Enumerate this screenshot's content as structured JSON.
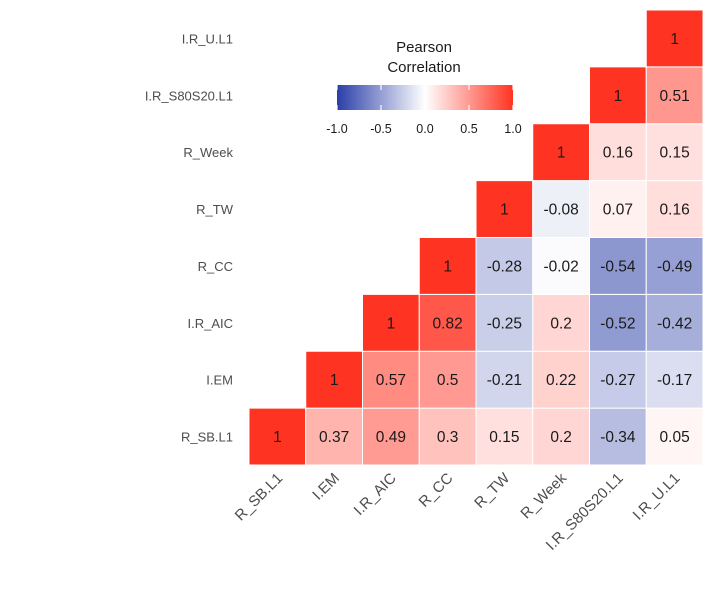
{
  "chart_data": {
    "type": "heatmap",
    "title": "",
    "variables": [
      "R_SB.L1",
      "I.EM",
      "I.R_AIC",
      "R_CC",
      "R_TW",
      "R_Week",
      "I.R_S80S20.L1",
      "I.R_U.L1"
    ],
    "x_tick_labels": [
      "R_SB.L1",
      "I.EM",
      "I.R_AIC",
      "R_CC",
      "R_TW",
      "R_Week",
      "I.R_S80S20.L1",
      "I.R_U.L1"
    ],
    "y_tick_labels": [
      "R_SB.L1",
      "I.EM",
      "I.R_AIC",
      "R_CC",
      "R_TW",
      "R_Week",
      "I.R_S80S20.L1",
      "I.R_U.L1"
    ],
    "triangle": "upper",
    "cells": [
      {
        "row": "R_SB.L1",
        "col": "R_SB.L1",
        "value": 1,
        "label": "1"
      },
      {
        "row": "R_SB.L1",
        "col": "I.EM",
        "value": 0.37,
        "label": "0.37"
      },
      {
        "row": "R_SB.L1",
        "col": "I.R_AIC",
        "value": 0.49,
        "label": "0.49"
      },
      {
        "row": "R_SB.L1",
        "col": "R_CC",
        "value": 0.3,
        "label": "0.3"
      },
      {
        "row": "R_SB.L1",
        "col": "R_TW",
        "value": 0.15,
        "label": "0.15"
      },
      {
        "row": "R_SB.L1",
        "col": "R_Week",
        "value": 0.2,
        "label": "0.2"
      },
      {
        "row": "R_SB.L1",
        "col": "I.R_S80S20.L1",
        "value": -0.34,
        "label": "-0.34"
      },
      {
        "row": "R_SB.L1",
        "col": "I.R_U.L1",
        "value": 0.05,
        "label": "0.05"
      },
      {
        "row": "I.EM",
        "col": "I.EM",
        "value": 1,
        "label": "1"
      },
      {
        "row": "I.EM",
        "col": "I.R_AIC",
        "value": 0.57,
        "label": "0.57"
      },
      {
        "row": "I.EM",
        "col": "R_CC",
        "value": 0.5,
        "label": "0.5"
      },
      {
        "row": "I.EM",
        "col": "R_TW",
        "value": -0.21,
        "label": "-0.21"
      },
      {
        "row": "I.EM",
        "col": "R_Week",
        "value": 0.22,
        "label": "0.22"
      },
      {
        "row": "I.EM",
        "col": "I.R_S80S20.L1",
        "value": -0.27,
        "label": "-0.27"
      },
      {
        "row": "I.EM",
        "col": "I.R_U.L1",
        "value": -0.17,
        "label": "-0.17"
      },
      {
        "row": "I.R_AIC",
        "col": "I.R_AIC",
        "value": 1,
        "label": "1"
      },
      {
        "row": "I.R_AIC",
        "col": "R_CC",
        "value": 0.82,
        "label": "0.82"
      },
      {
        "row": "I.R_AIC",
        "col": "R_TW",
        "value": -0.25,
        "label": "-0.25"
      },
      {
        "row": "I.R_AIC",
        "col": "R_Week",
        "value": 0.2,
        "label": "0.2"
      },
      {
        "row": "I.R_AIC",
        "col": "I.R_S80S20.L1",
        "value": -0.52,
        "label": "-0.52"
      },
      {
        "row": "I.R_AIC",
        "col": "I.R_U.L1",
        "value": -0.42,
        "label": "-0.42"
      },
      {
        "row": "R_CC",
        "col": "R_CC",
        "value": 1,
        "label": "1"
      },
      {
        "row": "R_CC",
        "col": "R_TW",
        "value": -0.28,
        "label": "-0.28"
      },
      {
        "row": "R_CC",
        "col": "R_Week",
        "value": -0.02,
        "label": "-0.02"
      },
      {
        "row": "R_CC",
        "col": "I.R_S80S20.L1",
        "value": -0.54,
        "label": "-0.54"
      },
      {
        "row": "R_CC",
        "col": "I.R_U.L1",
        "value": -0.49,
        "label": "-0.49"
      },
      {
        "row": "R_TW",
        "col": "R_TW",
        "value": 1,
        "label": "1"
      },
      {
        "row": "R_TW",
        "col": "R_Week",
        "value": -0.08,
        "label": "-0.08"
      },
      {
        "row": "R_TW",
        "col": "I.R_S80S20.L1",
        "value": 0.07,
        "label": "0.07"
      },
      {
        "row": "R_TW",
        "col": "I.R_U.L1",
        "value": 0.16,
        "label": "0.16"
      },
      {
        "row": "R_Week",
        "col": "R_Week",
        "value": 1,
        "label": "1"
      },
      {
        "row": "R_Week",
        "col": "I.R_S80S20.L1",
        "value": 0.16,
        "label": "0.16"
      },
      {
        "row": "R_Week",
        "col": "I.R_U.L1",
        "value": 0.15,
        "label": "0.15"
      },
      {
        "row": "I.R_S80S20.L1",
        "col": "I.R_S80S20.L1",
        "value": 1,
        "label": "1"
      },
      {
        "row": "I.R_S80S20.L1",
        "col": "I.R_U.L1",
        "value": 0.51,
        "label": "0.51"
      },
      {
        "row": "I.R_U.L1",
        "col": "I.R_U.L1",
        "value": 1,
        "label": "1"
      }
    ],
    "color_scale": {
      "low": "#2a3ea8",
      "mid": "#ffffff",
      "high": "#ff3322",
      "limits": [
        -1.0,
        1.0
      ]
    },
    "legend": {
      "title_lines": [
        "Pearson",
        "Correlation"
      ],
      "ticks": [
        -1.0,
        -0.5,
        0.0,
        0.5,
        1.0
      ],
      "tick_labels": [
        "-1.0",
        "-0.5",
        "0.0",
        "0.5",
        "1.0"
      ],
      "placement": "top-center"
    },
    "xlabel": "",
    "ylabel": "",
    "grid": false
  }
}
